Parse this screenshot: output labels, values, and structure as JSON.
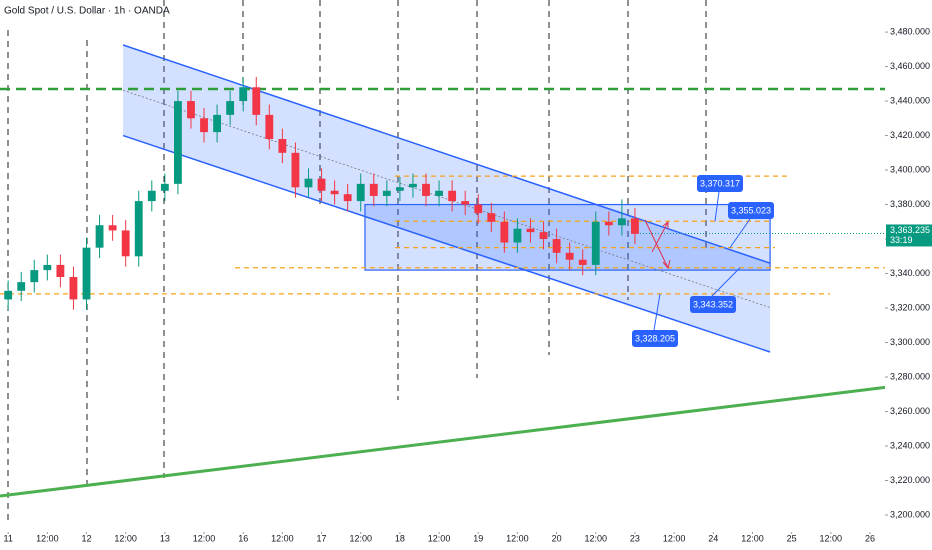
{
  "chart_data": {
    "type": "candlestick",
    "title": "Gold Spot / U.S. Dollar · 1h · OANDA",
    "xlim": [
      -2.5,
      268.6
    ],
    "xticks": [
      {
        "value": 0,
        "label": "11"
      },
      {
        "value": 12,
        "label": "12:00"
      },
      {
        "value": 24,
        "label": "12"
      },
      {
        "value": 36,
        "label": "12:00"
      },
      {
        "value": 48,
        "label": "13"
      },
      {
        "value": 60,
        "label": "12:00"
      },
      {
        "value": 72,
        "label": "16"
      },
      {
        "value": 84,
        "label": "12:00"
      },
      {
        "value": 96,
        "label": "17"
      },
      {
        "value": 108,
        "label": "12:00"
      },
      {
        "value": 120,
        "label": "18"
      },
      {
        "value": 132,
        "label": "12:00"
      },
      {
        "value": 144,
        "label": "19"
      },
      {
        "value": 156,
        "label": "12:00"
      },
      {
        "value": 168,
        "label": "20"
      },
      {
        "value": 180,
        "label": "12:00"
      },
      {
        "value": 192,
        "label": "23"
      },
      {
        "value": 204,
        "label": "12:00"
      },
      {
        "value": 216,
        "label": "24"
      },
      {
        "value": 228,
        "label": "12:00"
      },
      {
        "value": 240,
        "label": "25"
      },
      {
        "value": 252,
        "label": "12:00"
      },
      {
        "value": 264,
        "label": "26"
      }
    ],
    "ylim": [
      3191.3,
      3498.6
    ],
    "yticks": [
      {
        "value": 3480,
        "label": "3,480.000"
      },
      {
        "value": 3460,
        "label": "3,460.000"
      },
      {
        "value": 3440,
        "label": "3,440.000"
      },
      {
        "value": 3420,
        "label": "3,420.000"
      },
      {
        "value": 3400,
        "label": "3,400.000"
      },
      {
        "value": 3380,
        "label": "3,380.000"
      },
      {
        "value": 3360,
        "label": "3,360.000"
      },
      {
        "value": 3340,
        "label": "3,340.000"
      },
      {
        "value": 3320,
        "label": "3,320.000"
      },
      {
        "value": 3300,
        "label": "3,300.000"
      },
      {
        "value": 3280,
        "label": "3,280.000"
      },
      {
        "value": 3260,
        "label": "3,260.000"
      },
      {
        "value": 3240,
        "label": "3,240.000"
      },
      {
        "value": 3220,
        "label": "3,220.000"
      },
      {
        "value": 3200,
        "label": "3,200.000"
      }
    ],
    "up_color": "#089981",
    "down_color": "#f23645",
    "x": [
      0,
      4,
      8,
      12,
      16,
      20,
      24,
      28,
      32,
      36,
      40,
      44,
      48,
      52,
      56,
      60,
      64,
      68,
      72,
      76,
      80,
      84,
      88,
      92,
      96,
      100,
      104,
      108,
      112,
      116,
      120,
      124,
      128,
      132,
      136,
      140,
      144,
      148,
      152,
      156,
      160,
      164,
      168,
      172,
      176,
      180,
      184,
      188,
      192
    ],
    "open": [
      3325,
      3330,
      3335,
      3342,
      3345,
      3338,
      3325,
      3355,
      3368,
      3365,
      3350,
      3382,
      3388,
      3392,
      3440,
      3430,
      3422,
      3432,
      3440,
      3448,
      3432,
      3418,
      3410,
      3390,
      3395,
      3388,
      3386,
      3382,
      3392,
      3385,
      3388,
      3390,
      3392,
      3385,
      3388,
      3382,
      3380,
      3375,
      3370,
      3358,
      3366,
      3364,
      3360,
      3352,
      3348,
      3345,
      3370,
      3368,
      3372
    ],
    "high": [
      3336,
      3341,
      3348,
      3351,
      3351,
      3344,
      3361,
      3374,
      3374,
      3371,
      3388,
      3394,
      3398,
      3446,
      3446,
      3436,
      3438,
      3446,
      3454,
      3454,
      3438,
      3424,
      3416,
      3401,
      3401,
      3394,
      3392,
      3398,
      3398,
      3394,
      3396,
      3398,
      3398,
      3394,
      3394,
      3388,
      3386,
      3381,
      3376,
      3372,
      3372,
      3370,
      3366,
      3358,
      3354,
      3376,
      3376,
      3383,
      3378
    ],
    "low": [
      3319,
      3324,
      3329,
      3336,
      3332,
      3319,
      3319,
      3349,
      3359,
      3344,
      3344,
      3376,
      3382,
      3386,
      3424,
      3416,
      3416,
      3426,
      3434,
      3426,
      3412,
      3404,
      3384,
      3384,
      3382,
      3380,
      3376,
      3376,
      3379,
      3379,
      3382,
      3384,
      3379,
      3379,
      3376,
      3374,
      3369,
      3364,
      3352,
      3352,
      3358,
      3354,
      3346,
      3342,
      3339,
      3339,
      3362,
      3362,
      3357
    ],
    "close": [
      3330,
      3335,
      3342,
      3345,
      3338,
      3325,
      3355,
      3368,
      3365,
      3350,
      3382,
      3388,
      3392,
      3440,
      3430,
      3422,
      3432,
      3440,
      3448,
      3432,
      3418,
      3410,
      3390,
      3395,
      3388,
      3386,
      3382,
      3392,
      3385,
      3388,
      3390,
      3392,
      3385,
      3388,
      3382,
      3380,
      3375,
      3370,
      3358,
      3366,
      3364,
      3360,
      3352,
      3348,
      3345,
      3370,
      3368,
      3372,
      3363
    ],
    "last_price": {
      "value": 3363.235,
      "label": "3,363.235"
    },
    "countdown": "33:19",
    "levels": [
      {
        "value": 3447,
        "from": -2.5,
        "to": 268.6,
        "color": "#2e9e3a"
      },
      {
        "value": 3396.5,
        "from": 118.5,
        "to": 239.5,
        "color": "#f7a21b"
      },
      {
        "value": 3370.317,
        "from": 118.5,
        "to": 233.4,
        "color": "#f7a21b"
      },
      {
        "value": 3355.023,
        "from": 118.5,
        "to": 234.9,
        "color": "#f7a21b"
      },
      {
        "value": 3343.352,
        "from": 69.5,
        "to": 268.6,
        "color": "#f7a21b"
      },
      {
        "value": 3328.205,
        "from": -2.5,
        "to": 251.8,
        "color": "#f7a21b"
      }
    ],
    "price_labels": [
      {
        "value": 3370.317,
        "label": "3,370.317"
      },
      {
        "value": 3355.023,
        "label": "3,355.023"
      },
      {
        "value": 3343.352,
        "label": "3,343.352"
      },
      {
        "value": 3328.205,
        "label": "3,328.205"
      }
    ],
    "channel": {
      "upper": [
        [
          35.2,
          3472.5
        ],
        [
          233.4,
          3346
        ]
      ],
      "lower": [
        [
          35.2,
          3420
        ],
        [
          233.4,
          3294.5
        ]
      ]
    },
    "range_box": {
      "x": [
        109.3,
        233.4
      ],
      "y": [
        3342,
        3380
      ]
    },
    "trendline": [
      [
        -2.5,
        3211
      ],
      [
        268.6,
        3274
      ]
    ]
  }
}
